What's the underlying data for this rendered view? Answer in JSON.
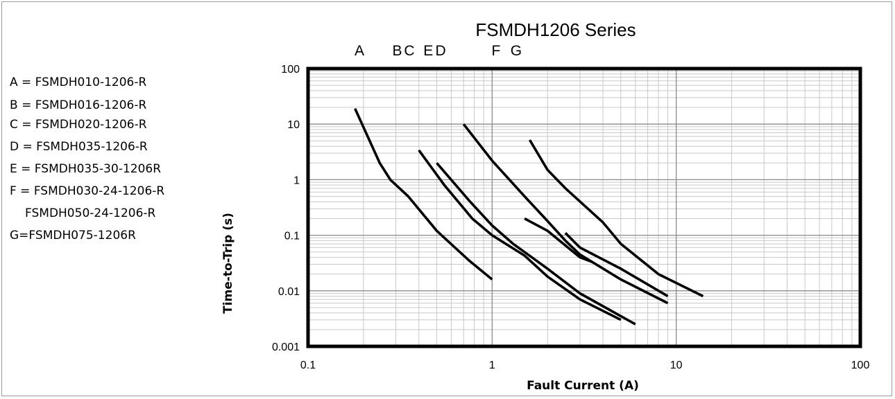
{
  "chart_data": {
    "type": "line",
    "title": "FSMDH1206 Series",
    "xlabel": "Fault Current (A)",
    "ylabel": "Time-to-Trip (s)",
    "x_scale": "log",
    "y_scale": "log",
    "xlim": [
      0.1,
      100
    ],
    "ylim": [
      0.001,
      100
    ],
    "x_tick_labels": [
      "0.1",
      "1",
      "10",
      "100"
    ],
    "y_tick_labels": [
      "0.001",
      "0.01",
      "0.1",
      "1",
      "10",
      "100"
    ],
    "grid": true,
    "legend": [
      "A = FSMDH010-1206-R",
      "B = FSMDH016-1206-R",
      "C = FSMDH020-1206-R",
      "D = FSMDH035-1206-R",
      "E = FSMDH035-30-1206R",
      "F = FSMDH030-24-1206-R",
      "FSMDH050-24-1206-R",
      "G=FSMDH075-1206R"
    ],
    "curve_letters": [
      {
        "text": "A",
        "x": 0.19
      },
      {
        "text": "B",
        "x": 0.305
      },
      {
        "text": "C",
        "x": 0.355
      },
      {
        "text": "E",
        "x": 0.45
      },
      {
        "text": "D",
        "x": 0.525
      },
      {
        "text": "F",
        "x": 1.05
      },
      {
        "text": "G",
        "x": 1.35
      }
    ],
    "series": [
      {
        "points": [
          [
            0.18,
            19
          ],
          [
            0.245,
            2
          ],
          [
            0.28,
            1
          ],
          [
            0.35,
            0.5
          ],
          [
            0.5,
            0.12
          ],
          [
            0.75,
            0.035
          ],
          [
            1.0,
            0.016
          ]
        ]
      },
      {
        "points": [
          [
            0.4,
            3.4
          ],
          [
            0.55,
            0.8
          ],
          [
            0.78,
            0.2
          ],
          [
            1.0,
            0.1
          ],
          [
            1.5,
            0.043
          ],
          [
            2.0,
            0.018
          ],
          [
            3.0,
            0.007
          ],
          [
            5.0,
            0.003
          ]
        ]
      },
      {
        "points": [
          [
            0.5,
            2.0
          ],
          [
            0.75,
            0.42
          ],
          [
            1.0,
            0.15
          ],
          [
            1.3,
            0.07
          ],
          [
            2.0,
            0.025
          ],
          [
            3.0,
            0.009
          ],
          [
            6.0,
            0.0025
          ]
        ]
      },
      {
        "points": [
          [
            0.7,
            10
          ],
          [
            1.0,
            2.2
          ],
          [
            1.5,
            0.5
          ],
          [
            2.0,
            0.18
          ],
          [
            2.5,
            0.08
          ],
          [
            3.0,
            0.045
          ],
          [
            5.0,
            0.016
          ],
          [
            9.0,
            0.006
          ]
        ]
      },
      {
        "points": [
          [
            1.6,
            5.2
          ],
          [
            2.0,
            1.5
          ],
          [
            2.5,
            0.7
          ],
          [
            4.0,
            0.17
          ],
          [
            5.0,
            0.07
          ],
          [
            8.0,
            0.02
          ],
          [
            14.0,
            0.008
          ]
        ]
      },
      {
        "points": [
          [
            1.5,
            0.2
          ],
          [
            2.0,
            0.12
          ],
          [
            3.0,
            0.04
          ],
          [
            3.5,
            0.033
          ]
        ]
      },
      {
        "points": [
          [
            2.5,
            0.11
          ],
          [
            3.0,
            0.06
          ],
          [
            5.0,
            0.025
          ],
          [
            9.0,
            0.008
          ]
        ]
      }
    ]
  }
}
